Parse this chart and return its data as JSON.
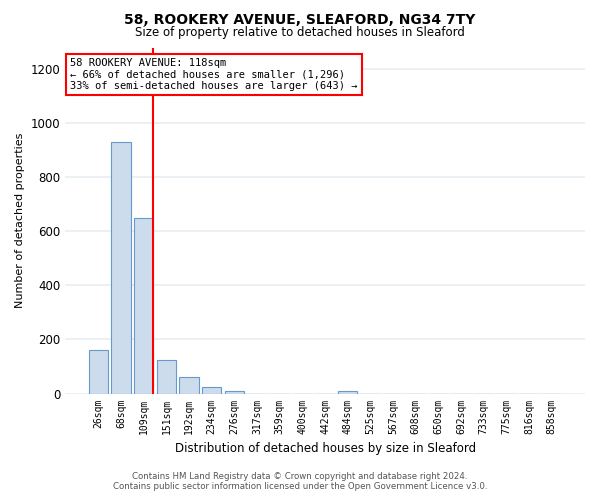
{
  "title1": "58, ROOKERY AVENUE, SLEAFORD, NG34 7TY",
  "title2": "Size of property relative to detached houses in Sleaford",
  "xlabel": "Distribution of detached houses by size in Sleaford",
  "ylabel": "Number of detached properties",
  "bar_labels": [
    "26sqm",
    "68sqm",
    "109sqm",
    "151sqm",
    "192sqm",
    "234sqm",
    "276sqm",
    "317sqm",
    "359sqm",
    "400sqm",
    "442sqm",
    "484sqm",
    "525sqm",
    "567sqm",
    "608sqm",
    "650sqm",
    "692sqm",
    "733sqm",
    "775sqm",
    "816sqm",
    "858sqm"
  ],
  "bar_values": [
    160,
    930,
    650,
    125,
    62,
    25,
    10,
    0,
    0,
    0,
    0,
    10,
    0,
    0,
    0,
    0,
    0,
    0,
    0,
    0,
    0
  ],
  "bar_color": "#cddcec",
  "bar_edge_color": "#6699cc",
  "annotation_title": "58 ROOKERY AVENUE: 118sqm",
  "annotation_line1": "← 66% of detached houses are smaller (1,296)",
  "annotation_line2": "33% of semi-detached houses are larger (643) →",
  "ylim": [
    0,
    1280
  ],
  "yticks": [
    0,
    200,
    400,
    600,
    800,
    1000,
    1200
  ],
  "footer1": "Contains HM Land Registry data © Crown copyright and database right 2024.",
  "footer2": "Contains public sector information licensed under the Open Government Licence v3.0.",
  "bg_color": "#ffffff",
  "grid_color": "#e8eef4",
  "red_line_index": 2.5
}
